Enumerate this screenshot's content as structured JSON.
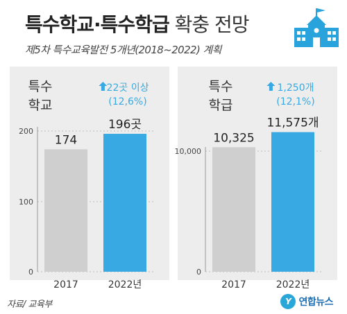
{
  "header": {
    "title_bold": "특수학교·특수학급",
    "title_light": "확충 전망",
    "subtitle": "제5차 특수교육발전 5개년(2018~2022) 계획",
    "icon": "school-building-icon",
    "icon_color": "#29a3dc"
  },
  "colors": {
    "bar_2017": "#cfcfcf",
    "bar_2022": "#38a9e2",
    "accent": "#38a9e2",
    "panel_bg": "#ededed"
  },
  "chart_data": [
    {
      "type": "bar",
      "label_lines": [
        "특수",
        "학교"
      ],
      "categories": [
        "2017",
        "2022년"
      ],
      "values": [
        174,
        196
      ],
      "value_labels": [
        "174",
        "196곳"
      ],
      "change_lines": [
        "22곳 이상",
        "(12,6%)"
      ],
      "yticks": [
        "0",
        "100",
        "200"
      ],
      "ylim": [
        0,
        200
      ],
      "grid": true
    },
    {
      "type": "bar",
      "label_lines": [
        "특수",
        "학급"
      ],
      "categories": [
        "2017",
        "2022년"
      ],
      "values": [
        10325,
        11575
      ],
      "value_labels": [
        "10,325",
        "11,575개"
      ],
      "change_lines": [
        "1,250개",
        "(12,1%)"
      ],
      "yticks": [
        "0",
        "10,000"
      ],
      "ylim": [
        0,
        11700
      ],
      "grid": true
    }
  ],
  "footer": {
    "source": "자료/ 교육부",
    "logo_badge": "Y",
    "logo_text": "연합뉴스"
  }
}
